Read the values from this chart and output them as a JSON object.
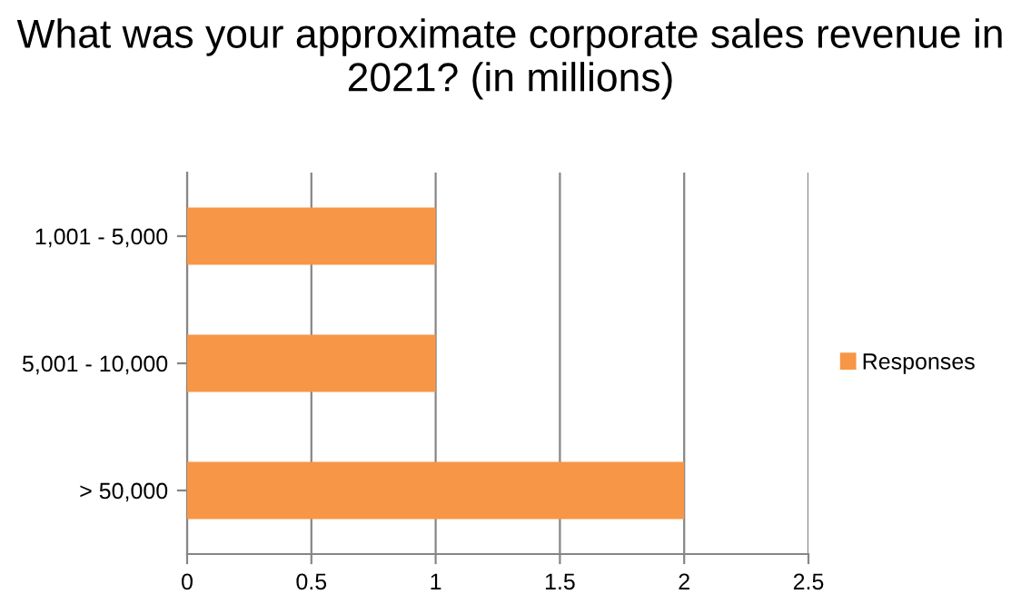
{
  "chart_data": {
    "type": "bar",
    "orientation": "horizontal",
    "title": "What was your approximate corporate sales revenue in 2021? (in millions)",
    "categories": [
      "1,001 - 5,000",
      "5,001 - 10,000",
      "> 50,000"
    ],
    "series": [
      {
        "name": "Responses",
        "color": "#f79646",
        "values": [
          1,
          1,
          2
        ]
      }
    ],
    "xlim": [
      0,
      2.5
    ],
    "xticks": [
      0,
      0.5,
      1,
      1.5,
      2,
      2.5
    ],
    "grid": "x",
    "legend": "right"
  }
}
